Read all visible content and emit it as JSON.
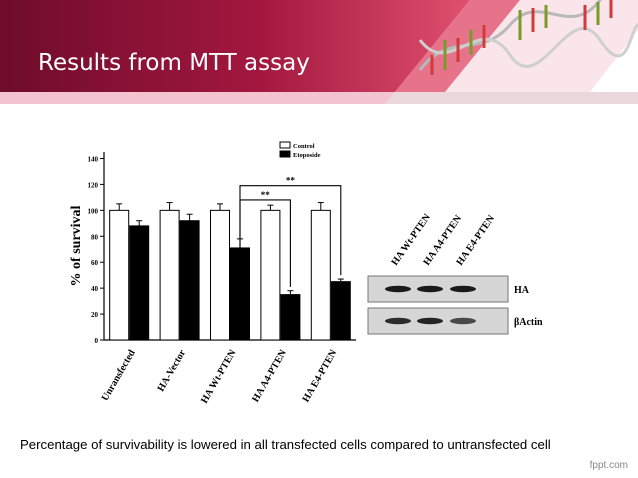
{
  "slide": {
    "title": "Results from MTT assay",
    "caption": "Percentage of survivability  is lowered in all transfected cells compared to untransfected cell",
    "footer": "fppt.com",
    "colors": {
      "banner_dark": "#7a0f2e",
      "banner_mid": "#c8264e",
      "banner_light": "#f3b9c6",
      "dna_red": "#d03a3a",
      "dna_green": "#7a9a2a"
    },
    "decoration": "dna-helix-icon"
  },
  "chart_data": {
    "type": "bar",
    "categories": [
      "Unransfected",
      "HA-Vector",
      "HA Wt-PTEN",
      "HA A4-PTEN",
      "HA E4-PTEN"
    ],
    "series": [
      {
        "name": "Control",
        "values": [
          100,
          100,
          100,
          100,
          100
        ],
        "errors": [
          5,
          6,
          5,
          4,
          6
        ],
        "color": "#ffffff"
      },
      {
        "name": "Etoposide",
        "values": [
          88,
          92,
          71,
          35,
          45
        ],
        "errors": [
          4,
          5,
          7,
          3,
          2
        ],
        "color": "#000000"
      }
    ],
    "ylabel": "% of survival",
    "yticks": [
      0,
      20,
      40,
      60,
      80,
      100,
      120,
      140
    ],
    "ylim": [
      0,
      145
    ],
    "legend": "top-right",
    "annotations": [
      {
        "text": "**",
        "from": "HA Wt-PTEN",
        "to": "HA A4-PTEN"
      },
      {
        "text": "**",
        "from": "HA Wt-PTEN",
        "to": "HA E4-PTEN"
      }
    ]
  },
  "western_blot": {
    "lanes": [
      "HA Wt-PTEN",
      "HA A4-PTEN",
      "HA E4-PTEN"
    ],
    "rows": [
      {
        "label": "HA",
        "band_intensity": [
          1.0,
          1.0,
          1.0
        ]
      },
      {
        "label": "βActin",
        "band_intensity": [
          0.9,
          0.95,
          0.75
        ]
      }
    ]
  }
}
